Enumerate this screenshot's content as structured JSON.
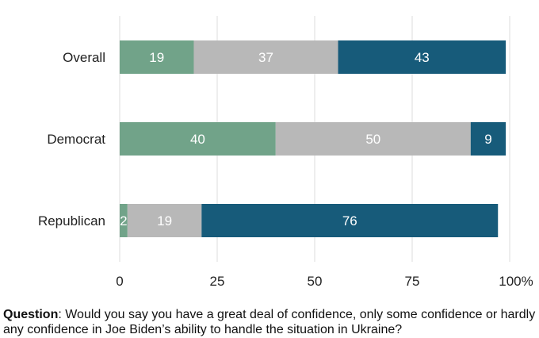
{
  "chart_data": {
    "type": "bar",
    "orientation": "horizontal",
    "stacked": true,
    "categories": [
      "Overall",
      "Democrat",
      "Republican"
    ],
    "series": [
      {
        "values": [
          19,
          40,
          2
        ],
        "color": "#71a389"
      },
      {
        "values": [
          37,
          50,
          19
        ],
        "color": "#b8b8b8"
      },
      {
        "values": [
          43,
          9,
          76
        ],
        "color": "#175b7a"
      }
    ],
    "xlim": [
      0,
      100
    ],
    "xticks": [
      "0",
      "25",
      "50",
      "75",
      "100%"
    ],
    "xtick_values": [
      0,
      25,
      50,
      75,
      100
    ],
    "grid": true
  },
  "caption": {
    "bold": "Question",
    "text": ": Would you say you have a great deal of confidence, only some confidence or hardly any confidence in Joe Biden’s ability to handle the situation in Ukraine?"
  }
}
